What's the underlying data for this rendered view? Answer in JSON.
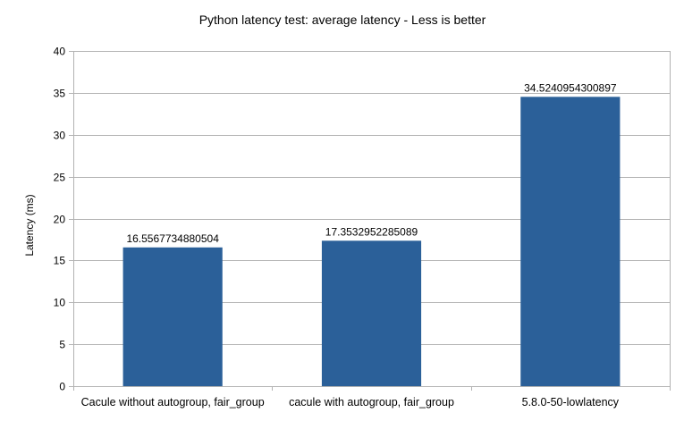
{
  "chart_data": {
    "type": "bar",
    "title": "Python latency test: average latency - Less is better",
    "xlabel": "",
    "ylabel": "Latency (ms)",
    "ylim": [
      0,
      40
    ],
    "yticks": [
      0,
      5,
      10,
      15,
      20,
      25,
      30,
      35,
      40
    ],
    "grid": true,
    "legend": "none",
    "categories": [
      "Cacule without autogroup, fair_group",
      "cacule with autogroup, fair_group",
      "5.8.0-50-lowlatency"
    ],
    "values": [
      16.5567734880504,
      17.3532952285089,
      34.5240954300897
    ],
    "data_labels": [
      "16.5567734880504",
      "17.3532952285089",
      "34.5240954300897"
    ]
  },
  "colors": {
    "bar": "#2b6099",
    "grid": "#b3b3b3",
    "axis": "#b3b3b3",
    "text": "#000000"
  }
}
